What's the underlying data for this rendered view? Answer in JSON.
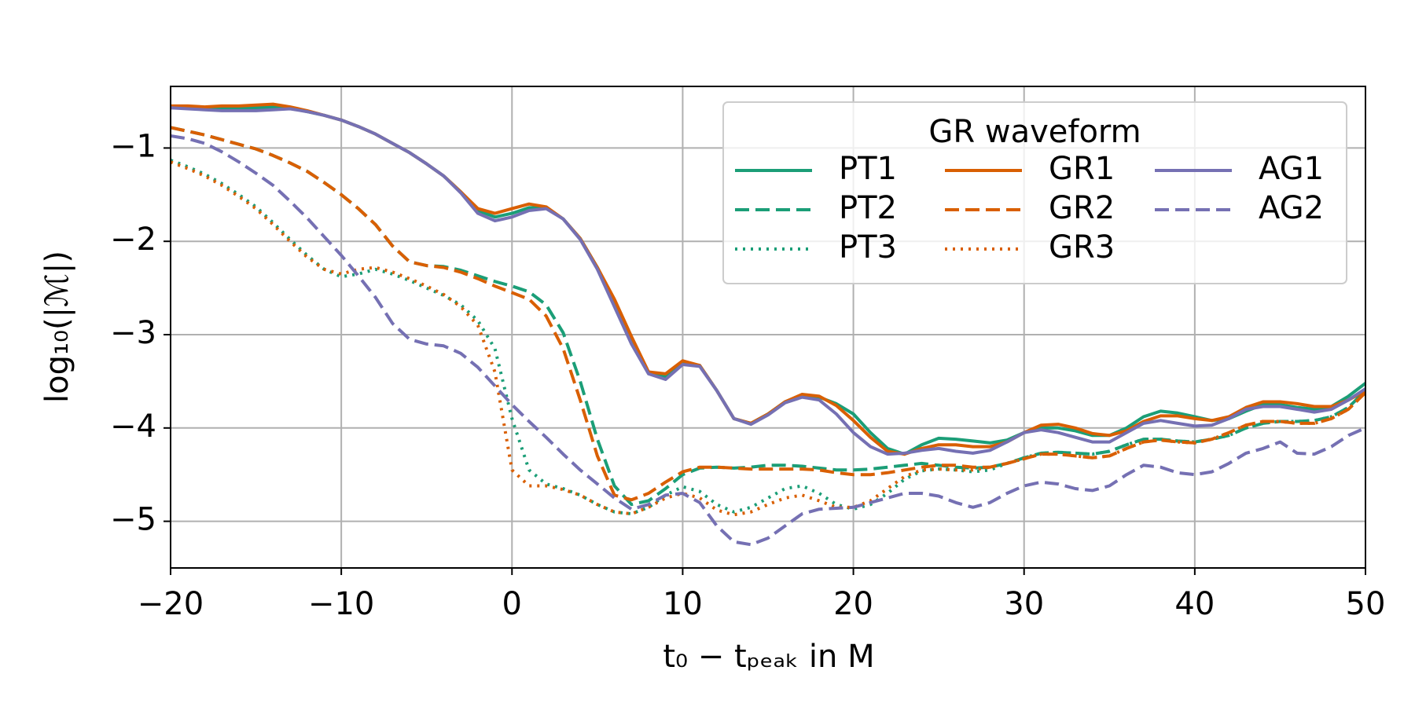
{
  "chart_data": {
    "type": "line",
    "xlabel": "t₀ − tₚₑₐₖ in M",
    "ylabel": "log₁₀(|ℳ|)",
    "xlim": [
      -20,
      50
    ],
    "ylim": [
      -5.5,
      -0.34
    ],
    "xticks": [
      {
        "value": -20,
        "label": "−20"
      },
      {
        "value": -10,
        "label": "−10"
      },
      0,
      10,
      20,
      30,
      40,
      50
    ],
    "yticks": [
      {
        "value": -5,
        "label": "−5"
      },
      {
        "value": -4,
        "label": "−4"
      },
      {
        "value": -3,
        "label": "−3"
      },
      {
        "value": -2,
        "label": "−2"
      },
      {
        "value": -1,
        "label": "−1"
      }
    ],
    "grid": true,
    "legend": {
      "title": "GR waveform",
      "position": "upper right",
      "ncol": 3
    },
    "x": [
      -20,
      -19,
      -18,
      -17,
      -16,
      -15,
      -14,
      -13,
      -12,
      -11,
      -10,
      -9,
      -8,
      -7,
      -6,
      -5,
      -4,
      -3,
      -2,
      -1,
      0,
      1,
      2,
      3,
      4,
      5,
      6,
      7,
      8,
      9,
      10,
      11,
      12,
      13,
      14,
      15,
      16,
      17,
      18,
      19,
      20,
      21,
      22,
      23,
      24,
      25,
      26,
      27,
      28,
      29,
      30,
      31,
      32,
      33,
      34,
      35,
      36,
      37,
      38,
      39,
      40,
      41,
      42,
      43,
      44,
      45,
      46,
      47,
      48,
      49,
      50
    ],
    "series": [
      {
        "name": "PT1",
        "color": "#1b9e77",
        "linestyle": "solid",
        "values": [
          -0.57,
          -0.57,
          -0.58,
          -0.58,
          -0.58,
          -0.57,
          -0.56,
          -0.57,
          -0.61,
          -0.65,
          -0.7,
          -0.77,
          -0.85,
          -0.95,
          -1.05,
          -1.17,
          -1.3,
          -1.47,
          -1.67,
          -1.74,
          -1.7,
          -1.64,
          -1.64,
          -1.76,
          -1.97,
          -2.28,
          -2.65,
          -3.05,
          -3.41,
          -3.45,
          -3.3,
          -3.33,
          -3.6,
          -3.9,
          -3.95,
          -3.85,
          -3.72,
          -3.65,
          -3.67,
          -3.74,
          -3.85,
          -4.05,
          -4.22,
          -4.28,
          -4.18,
          -4.11,
          -4.12,
          -4.14,
          -4.16,
          -4.13,
          -4.05,
          -4.0,
          -4.0,
          -4.03,
          -4.08,
          -4.08,
          -4.0,
          -3.88,
          -3.82,
          -3.84,
          -3.88,
          -3.92,
          -3.9,
          -3.82,
          -3.75,
          -3.75,
          -3.78,
          -3.8,
          -3.77,
          -3.66,
          -3.52
        ]
      },
      {
        "name": "PT2",
        "color": "#1b9e77",
        "linestyle": "dashed",
        "values": [
          -0.78,
          -0.82,
          -0.86,
          -0.91,
          -0.96,
          -1.01,
          -1.08,
          -1.16,
          -1.25,
          -1.37,
          -1.5,
          -1.65,
          -1.82,
          -2.05,
          -2.22,
          -2.26,
          -2.27,
          -2.31,
          -2.37,
          -2.43,
          -2.48,
          -2.54,
          -2.68,
          -2.98,
          -3.5,
          -4.12,
          -4.62,
          -4.82,
          -4.78,
          -4.65,
          -4.5,
          -4.43,
          -4.42,
          -4.43,
          -4.42,
          -4.4,
          -4.4,
          -4.41,
          -4.43,
          -4.45,
          -4.45,
          -4.44,
          -4.42,
          -4.4,
          -4.38,
          -4.4,
          -4.42,
          -4.43,
          -4.42,
          -4.38,
          -4.32,
          -4.27,
          -4.26,
          -4.27,
          -4.28,
          -4.25,
          -4.18,
          -4.12,
          -4.12,
          -4.14,
          -4.15,
          -4.12,
          -4.08,
          -4.0,
          -3.95,
          -3.93,
          -3.93,
          -3.92,
          -3.88,
          -3.78,
          -3.6
        ]
      },
      {
        "name": "PT3",
        "color": "#1b9e77",
        "linestyle": "dotted",
        "values": [
          -1.13,
          -1.2,
          -1.28,
          -1.38,
          -1.5,
          -1.63,
          -1.8,
          -1.98,
          -2.15,
          -2.3,
          -2.38,
          -2.35,
          -2.3,
          -2.35,
          -2.42,
          -2.5,
          -2.58,
          -2.68,
          -2.85,
          -3.15,
          -3.9,
          -4.45,
          -4.6,
          -4.65,
          -4.72,
          -4.82,
          -4.9,
          -4.92,
          -4.85,
          -4.72,
          -4.63,
          -4.68,
          -4.82,
          -4.9,
          -4.85,
          -4.75,
          -4.65,
          -4.62,
          -4.7,
          -4.82,
          -4.87,
          -4.82,
          -4.7,
          -4.55,
          -4.46,
          -4.44,
          -4.45,
          -4.47,
          -4.45,
          -4.38,
          -4.32,
          -4.27,
          -4.26,
          -4.27,
          -4.28,
          -4.25,
          -4.18,
          -4.12,
          -4.12,
          -4.14,
          -4.15,
          -4.12,
          -4.08,
          -4.0,
          -3.95,
          -3.93,
          -3.93,
          -3.92,
          -3.88,
          -3.78,
          -3.6
        ]
      },
      {
        "name": "GR1",
        "color": "#d95f02",
        "linestyle": "solid",
        "values": [
          -0.55,
          -0.55,
          -0.56,
          -0.55,
          -0.55,
          -0.54,
          -0.53,
          -0.56,
          -0.6,
          -0.65,
          -0.7,
          -0.77,
          -0.85,
          -0.95,
          -1.05,
          -1.17,
          -1.3,
          -1.47,
          -1.65,
          -1.7,
          -1.65,
          -1.6,
          -1.63,
          -1.76,
          -1.97,
          -2.28,
          -2.62,
          -3.02,
          -3.4,
          -3.42,
          -3.28,
          -3.33,
          -3.6,
          -3.9,
          -3.95,
          -3.85,
          -3.72,
          -3.64,
          -3.66,
          -3.76,
          -3.92,
          -4.1,
          -4.25,
          -4.28,
          -4.22,
          -4.18,
          -4.18,
          -4.2,
          -4.2,
          -4.15,
          -4.05,
          -3.97,
          -3.96,
          -4.0,
          -4.06,
          -4.08,
          -4.03,
          -3.93,
          -3.87,
          -3.87,
          -3.9,
          -3.92,
          -3.88,
          -3.78,
          -3.72,
          -3.72,
          -3.74,
          -3.77,
          -3.77,
          -3.7,
          -3.6
        ]
      },
      {
        "name": "GR2",
        "color": "#d95f02",
        "linestyle": "dashed",
        "values": [
          -0.78,
          -0.82,
          -0.86,
          -0.91,
          -0.96,
          -1.01,
          -1.08,
          -1.16,
          -1.25,
          -1.37,
          -1.5,
          -1.65,
          -1.82,
          -2.05,
          -2.22,
          -2.26,
          -2.28,
          -2.33,
          -2.4,
          -2.48,
          -2.55,
          -2.62,
          -2.8,
          -3.15,
          -3.7,
          -4.3,
          -4.72,
          -4.77,
          -4.7,
          -4.58,
          -4.47,
          -4.42,
          -4.42,
          -4.43,
          -4.44,
          -4.44,
          -4.44,
          -4.44,
          -4.45,
          -4.48,
          -4.5,
          -4.5,
          -4.48,
          -4.45,
          -4.42,
          -4.4,
          -4.4,
          -4.42,
          -4.42,
          -4.38,
          -4.33,
          -4.28,
          -4.28,
          -4.3,
          -4.32,
          -4.3,
          -4.22,
          -4.15,
          -4.13,
          -4.15,
          -4.16,
          -4.12,
          -4.05,
          -3.97,
          -3.93,
          -3.93,
          -3.95,
          -3.95,
          -3.9,
          -3.8,
          -3.62
        ]
      },
      {
        "name": "GR3",
        "color": "#d95f02",
        "linestyle": "dotted",
        "values": [
          -1.15,
          -1.22,
          -1.3,
          -1.4,
          -1.52,
          -1.65,
          -1.82,
          -2.0,
          -2.17,
          -2.3,
          -2.35,
          -2.3,
          -2.28,
          -2.33,
          -2.4,
          -2.48,
          -2.57,
          -2.7,
          -2.9,
          -3.4,
          -4.45,
          -4.62,
          -4.62,
          -4.66,
          -4.72,
          -4.82,
          -4.9,
          -4.92,
          -4.85,
          -4.75,
          -4.7,
          -4.75,
          -4.88,
          -4.93,
          -4.9,
          -4.82,
          -4.75,
          -4.72,
          -4.78,
          -4.85,
          -4.85,
          -4.78,
          -4.65,
          -4.52,
          -4.45,
          -4.44,
          -4.45,
          -4.45,
          -4.42,
          -4.38,
          -4.33,
          -4.28,
          -4.28,
          -4.3,
          -4.32,
          -4.3,
          -4.22,
          -4.15,
          -4.13,
          -4.15,
          -4.16,
          -4.12,
          -4.05,
          -3.97,
          -3.93,
          -3.93,
          -3.95,
          -3.95,
          -3.9,
          -3.8,
          -3.62
        ]
      },
      {
        "name": "AG1",
        "color": "#7570b3",
        "linestyle": "solid",
        "values": [
          -0.57,
          -0.58,
          -0.59,
          -0.6,
          -0.6,
          -0.6,
          -0.59,
          -0.58,
          -0.61,
          -0.65,
          -0.7,
          -0.77,
          -0.85,
          -0.95,
          -1.05,
          -1.17,
          -1.3,
          -1.48,
          -1.7,
          -1.78,
          -1.74,
          -1.67,
          -1.65,
          -1.76,
          -1.98,
          -2.3,
          -2.7,
          -3.1,
          -3.42,
          -3.48,
          -3.32,
          -3.34,
          -3.6,
          -3.9,
          -3.96,
          -3.86,
          -3.73,
          -3.67,
          -3.7,
          -3.85,
          -4.05,
          -4.2,
          -4.28,
          -4.27,
          -4.24,
          -4.22,
          -4.25,
          -4.27,
          -4.24,
          -4.15,
          -4.05,
          -4.02,
          -4.05,
          -4.1,
          -4.15,
          -4.15,
          -4.05,
          -3.95,
          -3.92,
          -3.95,
          -3.98,
          -3.97,
          -3.9,
          -3.8,
          -3.77,
          -3.77,
          -3.8,
          -3.83,
          -3.8,
          -3.7,
          -3.58
        ]
      },
      {
        "name": "AG2",
        "color": "#7570b3",
        "linestyle": "dashed",
        "values": [
          -0.87,
          -0.9,
          -0.95,
          -1.04,
          -1.15,
          -1.27,
          -1.4,
          -1.57,
          -1.75,
          -1.95,
          -2.15,
          -2.37,
          -2.6,
          -2.88,
          -3.05,
          -3.1,
          -3.12,
          -3.2,
          -3.35,
          -3.55,
          -3.75,
          -3.93,
          -4.1,
          -4.28,
          -4.45,
          -4.6,
          -4.75,
          -4.87,
          -4.82,
          -4.72,
          -4.7,
          -4.8,
          -5.05,
          -5.22,
          -5.25,
          -5.18,
          -5.05,
          -4.92,
          -4.87,
          -4.86,
          -4.85,
          -4.8,
          -4.75,
          -4.7,
          -4.7,
          -4.73,
          -4.8,
          -4.85,
          -4.8,
          -4.7,
          -4.62,
          -4.58,
          -4.6,
          -4.65,
          -4.67,
          -4.62,
          -4.5,
          -4.4,
          -4.42,
          -4.48,
          -4.5,
          -4.47,
          -4.38,
          -4.27,
          -4.22,
          -4.15,
          -4.27,
          -4.28,
          -4.2,
          -4.08,
          -4.0
        ]
      }
    ]
  }
}
